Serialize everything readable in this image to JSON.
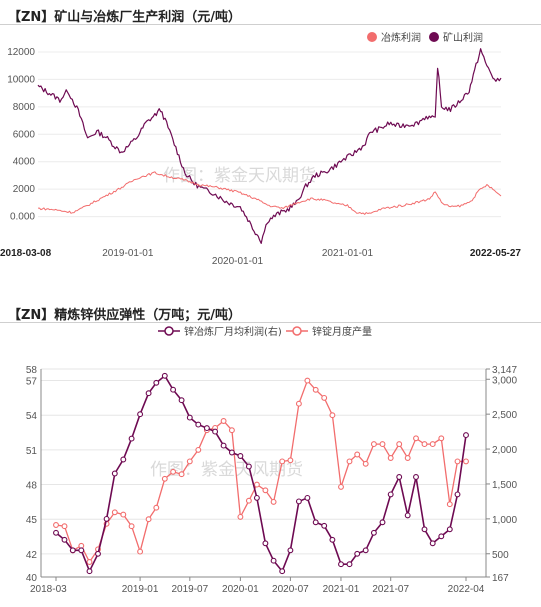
{
  "chart_data": [
    {
      "type": "line",
      "title": "【ZN】矿山与冶炼厂生产利润（元/吨）",
      "watermark": "作图：紫金天风期货",
      "ylim": [
        -2000,
        12000
      ],
      "yticks": [
        "12000",
        "10000",
        "8000",
        "6000",
        "4000",
        "2000",
        "0.000"
      ],
      "xticks": [
        {
          "label": "2018-03-08",
          "date": "2018-03-08",
          "bold": true
        },
        {
          "label": "2019-01-01",
          "date": "2019-01-01",
          "bold": false
        },
        {
          "label": "2020-01-01",
          "date": "2020-01-01",
          "bold": false
        },
        {
          "label": "2021-01-01",
          "date": "2021-01-01",
          "bold": false
        },
        {
          "label": "2022-05-27",
          "date": "2022-05-27",
          "bold": true
        }
      ],
      "legend": [
        {
          "name": "冶炼利润",
          "color": "#f26d6d"
        },
        {
          "name": "矿山利润",
          "color": "#6e0a52"
        }
      ],
      "series": [
        {
          "name": "矿山利润",
          "color": "#6e0a52",
          "points": [
            [
              "2018-03-08",
              9500
            ],
            [
              "2018-04-15",
              9000
            ],
            [
              "2018-05-20",
              8500
            ],
            [
              "2018-06-15",
              9200
            ],
            [
              "2018-07-20",
              7700
            ],
            [
              "2018-08-20",
              5700
            ],
            [
              "2018-09-20",
              6200
            ],
            [
              "2018-10-20",
              5800
            ],
            [
              "2018-11-15",
              5200
            ],
            [
              "2018-12-10",
              4700
            ],
            [
              "2019-01-01",
              5100
            ],
            [
              "2019-02-01",
              5800
            ],
            [
              "2019-03-01",
              6800
            ],
            [
              "2019-04-01",
              7400
            ],
            [
              "2019-04-20",
              7800
            ],
            [
              "2019-05-15",
              6500
            ],
            [
              "2019-06-10",
              5000
            ],
            [
              "2019-07-10",
              3200
            ],
            [
              "2019-08-10",
              2400
            ],
            [
              "2019-09-10",
              2000
            ],
            [
              "2019-10-15",
              1700
            ],
            [
              "2019-11-15",
              1200
            ],
            [
              "2019-12-15",
              900
            ],
            [
              "2020-01-10",
              700
            ],
            [
              "2020-02-05",
              -200
            ],
            [
              "2020-02-25",
              -1000
            ],
            [
              "2020-03-10",
              -1400
            ],
            [
              "2020-03-20",
              -1800
            ],
            [
              "2020-04-10",
              -300
            ],
            [
              "2020-05-15",
              200
            ],
            [
              "2020-06-15",
              500
            ],
            [
              "2020-07-15",
              1000
            ],
            [
              "2020-08-15",
              2200
            ],
            [
              "2020-09-15",
              3000
            ],
            [
              "2020-10-15",
              3200
            ],
            [
              "2020-11-15",
              3600
            ],
            [
              "2020-12-15",
              4100
            ],
            [
              "2021-01-15",
              4500
            ],
            [
              "2021-02-25",
              5200
            ],
            [
              "2021-03-20",
              6200
            ],
            [
              "2021-04-20",
              6400
            ],
            [
              "2021-05-20",
              6800
            ],
            [
              "2021-06-20",
              6600
            ],
            [
              "2021-07-20",
              6700
            ],
            [
              "2021-08-20",
              6800
            ],
            [
              "2021-09-20",
              7300
            ],
            [
              "2021-10-20",
              7100
            ],
            [
              "2021-10-28",
              11000
            ],
            [
              "2021-11-10",
              8000
            ],
            [
              "2021-12-10",
              7800
            ],
            [
              "2022-01-10",
              8400
            ],
            [
              "2022-02-10",
              9200
            ],
            [
              "2022-03-05",
              11000
            ],
            [
              "2022-03-20",
              12200
            ],
            [
              "2022-04-05",
              11200
            ],
            [
              "2022-04-25",
              10400
            ],
            [
              "2022-05-10",
              9800
            ],
            [
              "2022-05-27",
              10100
            ]
          ]
        },
        {
          "name": "冶炼利润",
          "color": "#f26d6d",
          "points": [
            [
              "2018-03-08",
              600
            ],
            [
              "2018-05-01",
              500
            ],
            [
              "2018-07-01",
              300
            ],
            [
              "2018-08-01",
              600
            ],
            [
              "2018-10-01",
              1300
            ],
            [
              "2018-12-01",
              2000
            ],
            [
              "2019-02-01",
              2800
            ],
            [
              "2019-04-01",
              3200
            ],
            [
              "2019-05-01",
              3000
            ],
            [
              "2019-07-01",
              2700
            ],
            [
              "2019-09-01",
              2300
            ],
            [
              "2019-11-01",
              2100
            ],
            [
              "2020-01-01",
              1800
            ],
            [
              "2020-03-01",
              1300
            ],
            [
              "2020-04-15",
              800
            ],
            [
              "2020-06-01",
              600
            ],
            [
              "2020-07-15",
              1000
            ],
            [
              "2020-09-01",
              1300
            ],
            [
              "2020-10-15",
              1200
            ],
            [
              "2020-12-01",
              900
            ],
            [
              "2021-01-01",
              800
            ],
            [
              "2021-02-01",
              300
            ],
            [
              "2021-03-15",
              200
            ],
            [
              "2021-05-01",
              600
            ],
            [
              "2021-07-01",
              800
            ],
            [
              "2021-09-01",
              1100
            ],
            [
              "2021-10-01",
              1300
            ],
            [
              "2021-10-20",
              1800
            ],
            [
              "2021-11-15",
              900
            ],
            [
              "2021-12-15",
              700
            ],
            [
              "2022-01-15",
              800
            ],
            [
              "2022-02-15",
              1100
            ],
            [
              "2022-03-15",
              1900
            ],
            [
              "2022-04-10",
              2300
            ],
            [
              "2022-05-05",
              1900
            ],
            [
              "2022-05-27",
              1500
            ]
          ]
        }
      ]
    },
    {
      "type": "line",
      "title": "【ZN】精炼锌供应弹性（万吨；元/吨）",
      "watermark": "作图：紫金天风期货",
      "ylim_left": [
        40,
        58
      ],
      "yticks_left": [
        "58",
        "57",
        "54",
        "51",
        "48",
        "45",
        "42",
        "40"
      ],
      "ylim_right": [
        167,
        3147
      ],
      "yticks_right": [
        "3,147",
        "3,000",
        "2,500",
        "2,000",
        "1,500",
        "1,000",
        "500",
        "167"
      ],
      "xticks": [
        "2018-03",
        "2019-01",
        "2019-07",
        "2020-01",
        "2020-07",
        "2021-01",
        "2021-07",
        "2022-04"
      ],
      "legend": [
        {
          "name": "锌冶炼厂月均利润(右)",
          "color": "#6e0a52"
        },
        {
          "name": "锌锭月度产量",
          "color": "#f26d6d"
        }
      ],
      "series": [
        {
          "name": "锌冶炼厂月均利润(右)",
          "axis": "right",
          "color": "#6e0a52",
          "points": [
            [
              "2018-03",
              800
            ],
            [
              "2018-04",
              700
            ],
            [
              "2018-05",
              550
            ],
            [
              "2018-06",
              550
            ],
            [
              "2018-07",
              250
            ],
            [
              "2018-08",
              500
            ],
            [
              "2018-09",
              1000
            ],
            [
              "2018-10",
              1650
            ],
            [
              "2018-11",
              1850
            ],
            [
              "2018-12",
              2150
            ],
            [
              "2019-01",
              2500
            ],
            [
              "2019-02",
              2800
            ],
            [
              "2019-03",
              2950
            ],
            [
              "2019-04",
              3050
            ],
            [
              "2019-05",
              2850
            ],
            [
              "2019-06",
              2700
            ],
            [
              "2019-07",
              2450
            ],
            [
              "2019-08",
              2350
            ],
            [
              "2019-09",
              2300
            ],
            [
              "2019-10",
              2250
            ],
            [
              "2019-11",
              2050
            ],
            [
              "2019-12",
              1950
            ],
            [
              "2020-01",
              1900
            ],
            [
              "2020-02",
              1750
            ],
            [
              "2020-03",
              1300
            ],
            [
              "2020-04",
              650
            ],
            [
              "2020-05",
              400
            ],
            [
              "2020-06",
              250
            ],
            [
              "2020-07",
              550
            ],
            [
              "2020-08",
              1250
            ],
            [
              "2020-09",
              1300
            ],
            [
              "2020-10",
              950
            ],
            [
              "2020-11",
              900
            ],
            [
              "2020-12",
              700
            ],
            [
              "2021-01",
              350
            ],
            [
              "2021-02",
              350
            ],
            [
              "2021-03",
              500
            ],
            [
              "2021-04",
              550
            ],
            [
              "2021-05",
              800
            ],
            [
              "2021-06",
              950
            ],
            [
              "2021-07",
              1350
            ],
            [
              "2021-08",
              1600
            ],
            [
              "2021-09",
              1050
            ],
            [
              "2021-10",
              1600
            ],
            [
              "2021-11",
              850
            ],
            [
              "2021-12",
              650
            ],
            [
              "2022-01",
              750
            ],
            [
              "2022-02",
              850
            ],
            [
              "2022-03",
              1350
            ],
            [
              "2022-04",
              2200
            ]
          ]
        },
        {
          "name": "锌锭月度产量",
          "axis": "left",
          "color": "#f26d6d",
          "points": [
            [
              "2018-03",
              44.5
            ],
            [
              "2018-04",
              44.4
            ],
            [
              "2018-05",
              42.3
            ],
            [
              "2018-06",
              42.7
            ],
            [
              "2018-07",
              41.3
            ],
            [
              "2018-08",
              42.4
            ],
            [
              "2018-09",
              44.6
            ],
            [
              "2018-10",
              45.6
            ],
            [
              "2018-11",
              45.4
            ],
            [
              "2018-12",
              44.4
            ],
            [
              "2019-01",
              42.2
            ],
            [
              "2019-02",
              45.0
            ],
            [
              "2019-03",
              46.0
            ],
            [
              "2019-04",
              48.5
            ],
            [
              "2019-05",
              49.1
            ],
            [
              "2019-06",
              48.9
            ],
            [
              "2019-07",
              50.0
            ],
            [
              "2019-08",
              51.0
            ],
            [
              "2019-09",
              52.7
            ],
            [
              "2019-10",
              52.9
            ],
            [
              "2019-11",
              53.5
            ],
            [
              "2019-12",
              52.7
            ],
            [
              "2020-01",
              45.2
            ],
            [
              "2020-02",
              46.6
            ],
            [
              "2020-03",
              48.0
            ],
            [
              "2020-04",
              47.5
            ],
            [
              "2020-05",
              46.5
            ],
            [
              "2020-06",
              50.0
            ],
            [
              "2020-07",
              50.1
            ],
            [
              "2020-08",
              55.0
            ],
            [
              "2020-09",
              57.0
            ],
            [
              "2020-10",
              56.2
            ],
            [
              "2020-11",
              55.5
            ],
            [
              "2020-12",
              54.0
            ],
            [
              "2021-01",
              47.8
            ],
            [
              "2021-02",
              50.0
            ],
            [
              "2021-03",
              50.6
            ],
            [
              "2021-04",
              49.8
            ],
            [
              "2021-05",
              51.5
            ],
            [
              "2021-06",
              51.5
            ],
            [
              "2021-07",
              50.3
            ],
            [
              "2021-08",
              51.5
            ],
            [
              "2021-09",
              50.3
            ],
            [
              "2021-10",
              52.0
            ],
            [
              "2021-11",
              51.5
            ],
            [
              "2021-12",
              51.5
            ],
            [
              "2022-01",
              52.0
            ],
            [
              "2022-02",
              46.3
            ],
            [
              "2022-03",
              50.0
            ],
            [
              "2022-04",
              50.0
            ]
          ]
        }
      ]
    }
  ]
}
